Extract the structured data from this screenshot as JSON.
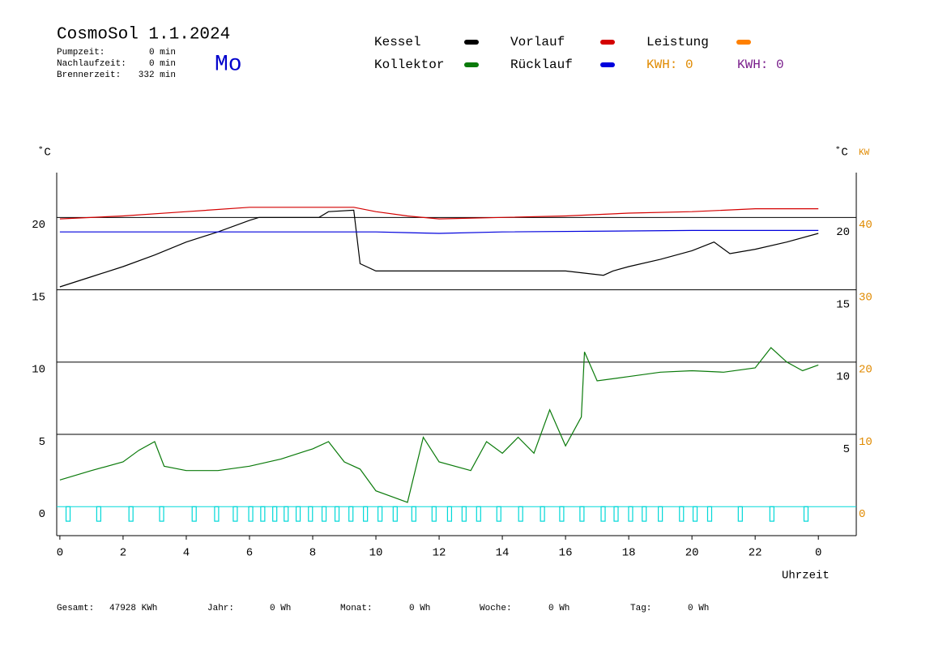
{
  "chart_data": {
    "type": "line",
    "title": "CosmoSol 1.1.2024",
    "day": "Mo",
    "stats": [
      {
        "label": "Pumpzeit:",
        "value": "0 min"
      },
      {
        "label": "Nachlaufzeit:",
        "value": "0 min"
      },
      {
        "label": "Brennerzeit:",
        "value": "332 min"
      }
    ],
    "kwh_labels": [
      {
        "text": "KWH: 0",
        "color": "#e08a00"
      },
      {
        "text": "KWH: 0",
        "color": "#7a1f8c"
      }
    ],
    "ylabel": "˚C",
    "y2label_c": "˚C",
    "y2label": "KW",
    "xlabel": "Uhrzeit",
    "xlim": [
      -0.1,
      25.2
    ],
    "xticks": [
      0,
      2,
      4,
      6,
      8,
      10,
      12,
      14,
      16,
      18,
      20,
      22,
      {
        "value": 24,
        "label": "0"
      }
    ],
    "ylim": [
      -2,
      23.1
    ],
    "yticks": [
      0,
      5,
      10,
      15,
      20
    ],
    "yticks_right": [
      5,
      10,
      15,
      20
    ],
    "y2lim": [
      -4,
      46.2
    ],
    "y2ticks": [
      0,
      10,
      20,
      30,
      40
    ],
    "grid": true,
    "series": [
      {
        "name": "Kessel",
        "color": "#000000",
        "x": [
          0,
          1,
          2,
          3,
          4,
          5,
          6,
          6.3,
          8.2,
          8.5,
          9.3,
          9.5,
          10,
          12,
          14,
          16,
          17.2,
          17.5,
          18,
          19,
          20,
          20.7,
          21.2,
          22,
          23,
          24
        ],
        "values": [
          15.2,
          15.9,
          16.6,
          17.4,
          18.3,
          19.0,
          19.8,
          20.0,
          20.0,
          20.4,
          20.5,
          16.8,
          16.3,
          16.3,
          16.3,
          16.3,
          16.0,
          16.3,
          16.6,
          17.1,
          17.7,
          18.3,
          17.5,
          17.8,
          18.3,
          18.9
        ]
      },
      {
        "name": "Kollektor",
        "color": "#0a7a0a",
        "x": [
          0,
          1,
          2,
          2.5,
          3,
          3.3,
          4,
          5,
          6,
          7,
          8,
          8.5,
          9,
          9.5,
          10,
          10.5,
          11,
          11.5,
          12,
          13,
          13.5,
          14,
          14.5,
          15,
          15.5,
          16,
          16.5,
          16.6,
          17,
          18,
          19,
          20,
          21,
          22,
          22.5,
          23,
          23.5,
          24
        ],
        "values": [
          1.85,
          2.5,
          3.1,
          3.9,
          4.5,
          2.8,
          2.5,
          2.5,
          2.8,
          3.3,
          4.0,
          4.5,
          3.1,
          2.6,
          1.1,
          0.7,
          0.3,
          4.8,
          3.1,
          2.5,
          4.5,
          3.7,
          4.8,
          3.7,
          6.7,
          4.2,
          6.2,
          10.7,
          8.7,
          9.0,
          9.3,
          9.4,
          9.3,
          9.6,
          11.0,
          10.0,
          9.4,
          9.8
        ]
      },
      {
        "name": "Vorlauf",
        "color": "#d40000",
        "x": [
          0,
          2,
          4,
          6,
          8,
          9.3,
          10,
          11,
          12,
          14,
          16,
          18,
          20,
          22,
          24
        ],
        "values": [
          19.9,
          20.1,
          20.4,
          20.7,
          20.7,
          20.7,
          20.4,
          20.1,
          19.9,
          20.0,
          20.1,
          20.3,
          20.4,
          20.6,
          20.6
        ]
      },
      {
        "name": "Rücklauf",
        "color": "#0000dd",
        "x": [
          0,
          6,
          10,
          12,
          14,
          20,
          24
        ],
        "values": [
          19.0,
          19.0,
          19.0,
          18.9,
          19.0,
          19.1,
          19.1
        ]
      },
      {
        "name": "Leistung",
        "color": "#ff8000",
        "axis": "y2",
        "x": [],
        "values": []
      },
      {
        "color": "#00d8d8",
        "type": "pulse",
        "x": [
          0.26,
          1.23,
          2.25,
          3.22,
          4.25,
          4.96,
          5.55,
          6.04,
          6.42,
          6.8,
          7.16,
          7.54,
          7.93,
          8.36,
          8.77,
          9.21,
          9.67,
          10.13,
          10.61,
          11.2,
          11.84,
          12.33,
          12.79,
          13.25,
          13.89,
          14.58,
          15.27,
          15.88,
          16.52,
          17.19,
          17.6,
          18.06,
          18.49,
          19.0,
          19.67,
          20.1,
          20.56,
          21.53,
          22.53,
          23.61
        ],
        "values": [
          -1,
          -1,
          -1,
          -1,
          -1,
          -1,
          -1,
          -1,
          -1,
          -1,
          -1,
          -1,
          -1,
          -1,
          -1,
          -1,
          -1,
          -1,
          -1,
          -1,
          -1,
          -1,
          -1,
          -1,
          -1,
          -1,
          -1,
          -1,
          -1,
          -1,
          -1,
          -1,
          -1,
          -1,
          -1,
          -1,
          -1,
          -1,
          -1,
          -1
        ]
      }
    ],
    "footer": [
      {
        "label": "Gesamt:",
        "value": "47928 KWh"
      },
      {
        "label": "Jahr:",
        "value": "0 Wh"
      },
      {
        "label": "Monat:",
        "value": "0 Wh"
      },
      {
        "label": "Woche:",
        "value": "0 Wh"
      },
      {
        "label": "Tag:",
        "value": "0 Wh"
      }
    ]
  }
}
